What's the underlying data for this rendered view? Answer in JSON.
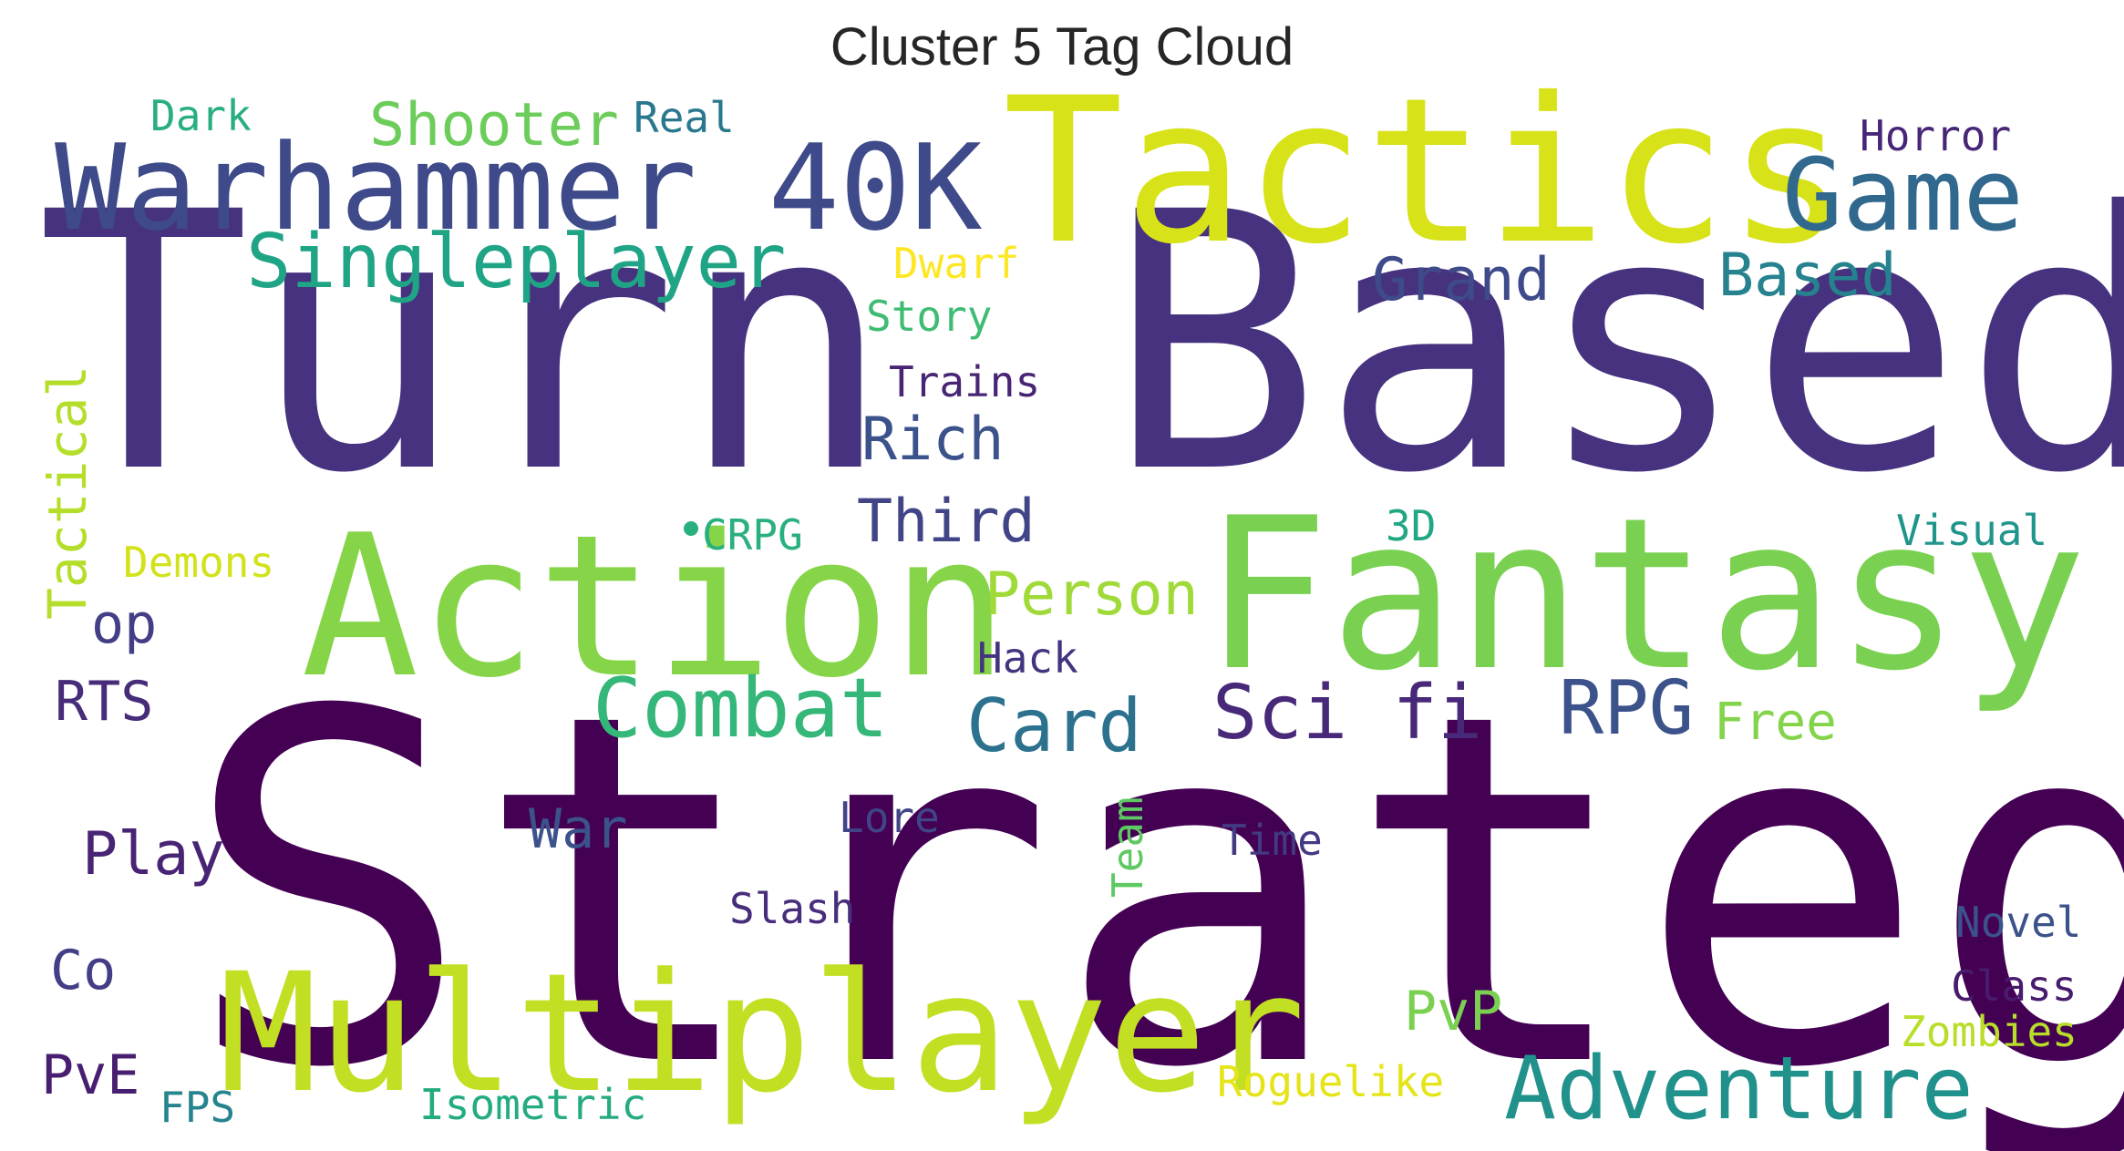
{
  "chart_data": {
    "type": "wordcloud",
    "title": "Cluster 5 Tag Cloud",
    "words": [
      {
        "text": "Strategy",
        "weight": 1.0,
        "color": "#440154"
      },
      {
        "text": "Turn Based",
        "weight": 0.95,
        "color": "#46327e"
      },
      {
        "text": "Tactics",
        "weight": 0.7,
        "color": "#d8e219"
      },
      {
        "text": "Fantasy",
        "weight": 0.7,
        "color": "#7ad151"
      },
      {
        "text": "Action",
        "weight": 0.68,
        "color": "#86d549"
      },
      {
        "text": "Multiplayer",
        "weight": 0.55,
        "color": "#c2df23"
      },
      {
        "text": "Warhammer 40K",
        "weight": 0.42,
        "color": "#3e4a89"
      },
      {
        "text": "Game",
        "weight": 0.36,
        "color": "#31688e"
      },
      {
        "text": "Adventure",
        "weight": 0.32,
        "color": "#21918c"
      },
      {
        "text": "Combat",
        "weight": 0.3,
        "color": "#35b779"
      },
      {
        "text": "Singleplayer",
        "weight": 0.28,
        "color": "#20a486"
      },
      {
        "text": "Sci fi",
        "weight": 0.28,
        "color": "#482878"
      },
      {
        "text": "RPG",
        "weight": 0.28,
        "color": "#3b528b"
      },
      {
        "text": "Card",
        "weight": 0.26,
        "color": "#2c728e"
      },
      {
        "text": "Shooter",
        "weight": 0.22,
        "color": "#6ccd5a"
      },
      {
        "text": "Grand",
        "weight": 0.22,
        "color": "#3e4a89"
      },
      {
        "text": "Based",
        "weight": 0.22,
        "color": "#26828e"
      },
      {
        "text": "Rich",
        "weight": 0.22,
        "color": "#3b528b"
      },
      {
        "text": "Third",
        "weight": 0.22,
        "color": "#414487"
      },
      {
        "text": "Person",
        "weight": 0.22,
        "color": "#a0da39"
      },
      {
        "text": "Tactical",
        "weight": 0.22,
        "color": "#b5de2b"
      },
      {
        "text": "Play",
        "weight": 0.22,
        "color": "#482475"
      },
      {
        "text": "War",
        "weight": 0.2,
        "color": "#3b528b"
      },
      {
        "text": "RTS",
        "weight": 0.2,
        "color": "#472c7a"
      },
      {
        "text": "Co",
        "weight": 0.2,
        "color": "#433e85"
      },
      {
        "text": "op",
        "weight": 0.2,
        "color": "#433e85"
      },
      {
        "text": "PvE",
        "weight": 0.2,
        "color": "#481f70"
      },
      {
        "text": "PvP",
        "weight": 0.2,
        "color": "#7ad151"
      },
      {
        "text": "Free",
        "weight": 0.19,
        "color": "#84d44b"
      },
      {
        "text": "Dark",
        "weight": 0.16,
        "color": "#29af7f"
      },
      {
        "text": "Real",
        "weight": 0.16,
        "color": "#2a788e"
      },
      {
        "text": "Horror",
        "weight": 0.16,
        "color": "#482677"
      },
      {
        "text": "Dwarf",
        "weight": 0.16,
        "color": "#fde725"
      },
      {
        "text": "Story",
        "weight": 0.16,
        "color": "#3fbc73"
      },
      {
        "text": "Trains",
        "weight": 0.16,
        "color": "#482475"
      },
      {
        "text": "CRPG",
        "weight": 0.16,
        "color": "#2ab07f"
      },
      {
        "text": "3D",
        "weight": 0.16,
        "color": "#22a785"
      },
      {
        "text": "Visual",
        "weight": 0.16,
        "color": "#1f958b"
      },
      {
        "text": "Demons",
        "weight": 0.16,
        "color": "#d2e21b"
      },
      {
        "text": "Hack",
        "weight": 0.16,
        "color": "#46337f"
      },
      {
        "text": "Lore",
        "weight": 0.16,
        "color": "#414487"
      },
      {
        "text": "Team",
        "weight": 0.16,
        "color": "#5ec962"
      },
      {
        "text": "Time",
        "weight": 0.16,
        "color": "#443983"
      },
      {
        "text": "Slash",
        "weight": 0.16,
        "color": "#472d7b"
      },
      {
        "text": "Novel",
        "weight": 0.16,
        "color": "#3b528b"
      },
      {
        "text": "Class",
        "weight": 0.16,
        "color": "#481b6d"
      },
      {
        "text": "Zombies",
        "weight": 0.16,
        "color": "#b8de29"
      },
      {
        "text": "Roguelike",
        "weight": 0.16,
        "color": "#e5e419"
      },
      {
        "text": "Isometric",
        "weight": 0.16,
        "color": "#25ab82"
      },
      {
        "text": "FPS",
        "weight": 0.16,
        "color": "#25848e"
      }
    ]
  }
}
